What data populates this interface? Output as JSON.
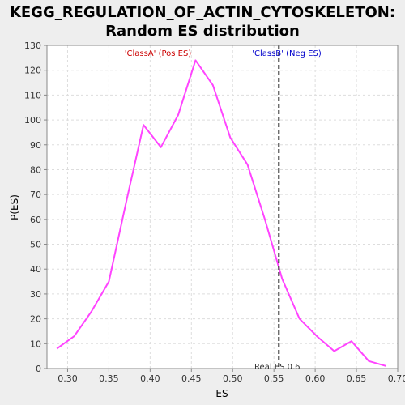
{
  "chart_data": {
    "type": "line",
    "title_line1": "KEGG_REGULATION_OF_ACTIN_CYTOSKELETON:",
    "title_line2": "Random ES distribution",
    "xlabel": "ES",
    "ylabel": "P(ES)",
    "xlim": [
      0.275,
      0.7
    ],
    "ylim": [
      0,
      130
    ],
    "xticks": [
      0.3,
      0.35,
      0.4,
      0.45,
      0.5,
      0.55,
      0.6,
      0.65,
      0.7
    ],
    "xtick_labels": [
      "0.30",
      "0.35",
      "0.40",
      "0.45",
      "0.50",
      "0.55",
      "0.60",
      "0.65",
      "0.70"
    ],
    "yticks": [
      0,
      10,
      20,
      30,
      40,
      50,
      60,
      70,
      80,
      90,
      100,
      110,
      120,
      130
    ],
    "grid": true,
    "series": [
      {
        "color": "#ff44ff",
        "x": [
          0.287,
          0.308,
          0.329,
          0.35,
          0.371,
          0.392,
          0.413,
          0.434,
          0.455,
          0.476,
          0.497,
          0.518,
          0.539,
          0.56,
          0.581,
          0.602,
          0.623,
          0.644,
          0.665,
          0.686
        ],
        "y": [
          8,
          13,
          23,
          35,
          67,
          98,
          89,
          102,
          124,
          114,
          93,
          82,
          60,
          36,
          20,
          13,
          7,
          11,
          3,
          1
        ]
      }
    ],
    "annotations": {
      "class_a": "'ClassA' (Pos ES)",
      "class_a_color": "#cc0000",
      "class_b": "'ClassB' (Neg ES)",
      "class_b_color": "#0000cc",
      "real_es_label": "Real ES 0.6",
      "real_es_value": 0.556
    }
  }
}
